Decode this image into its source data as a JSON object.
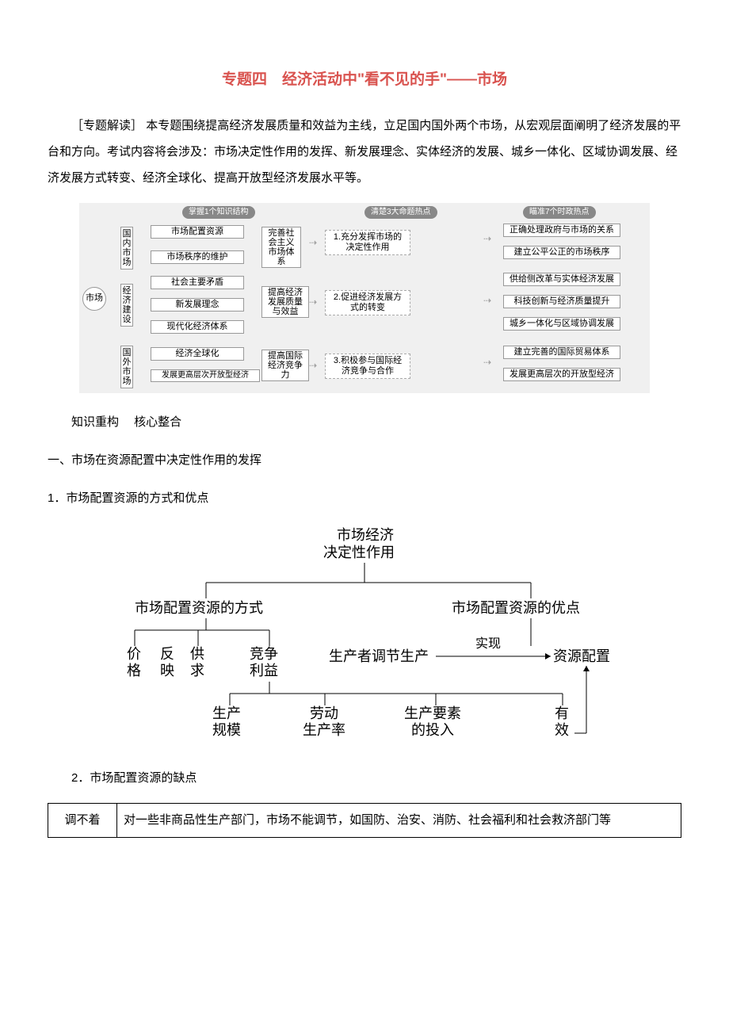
{
  "title": "专题四　经济活动中\"看不见的手\"——市场",
  "intro_label": "［专题解读］",
  "intro_body": "本专题围绕提高经济发展质量和效益为主线，立足国内国外两个市场，从宏观层面阐明了经济发展的平台和方向。考试内容将会涉及：市场决定性作用的发挥、新发展理念、实体经济的发展、城乡一体化、区域协调发展、经济发展方式转变、经济全球化、提高开放型经济发展水平等。",
  "diagram1": {
    "pill_left": "掌握1个知识结构",
    "pill_mid": "清楚3大命题热点",
    "pill_right": "瞄准7个时政热点",
    "root": "市场",
    "col0": [
      "国\\n内\\n市\\n场",
      "经\\n济\\n建\\n设",
      "国\\n外\\n市\\n场"
    ],
    "level1": [
      "市场配置资源",
      "市场秩序的维护",
      "社会主要矛盾",
      "新发展理念",
      "现代化经济体系",
      "经济全球化",
      "发展更高层次开放型经济"
    ],
    "level2": [
      "完善社\\n会主义\\n市场体\\n系",
      "提高经济\\n发展质量\\n与效益",
      "提高国际\\n经济竞争\\n力"
    ],
    "level3": [
      "1.充分发挥市场的\\n决定性作用",
      "2.促进经济发展方\\n式的转变",
      "3.积极参与国际经\\n济竞争与合作"
    ],
    "right": [
      "正确处理政府与市场的关系",
      "建立公平公正的市场秩序",
      "供给侧改革与实体经济发展",
      "科技创新与经济质量提升",
      "城乡一体化与区域协调发展",
      "建立完善的国际贸易体系",
      "发展更高层次的开放型经济"
    ]
  },
  "section1": "知识重构　 核心整合",
  "section2": "一、市场在资源配置中决定性作用的发挥",
  "section3": "1．市场配置资源的方式和优点",
  "diagram2": {
    "root": "市场经济",
    "sub": "决定性作用",
    "branches": [
      "市场配置资源的方式",
      "市场配置资源的优点"
    ],
    "row_left": [
      "价\\n格",
      "反\\n映",
      "供\\n求",
      "竞争\\n利益"
    ],
    "mid_node": "生产者调节生产",
    "mid_label": "实现",
    "right_node": "资源配置",
    "bottom": [
      "生产\\n规模",
      "劳动\\n生产率",
      "生产要素\\n的投入",
      "有\\n效"
    ]
  },
  "section4": "2．市场配置资源的缺点",
  "table": {
    "left": "调不着",
    "right": "对一些非商品性生产部门，市场不能调节，如国防、治安、消防、社会福利和社会救济部门等"
  }
}
